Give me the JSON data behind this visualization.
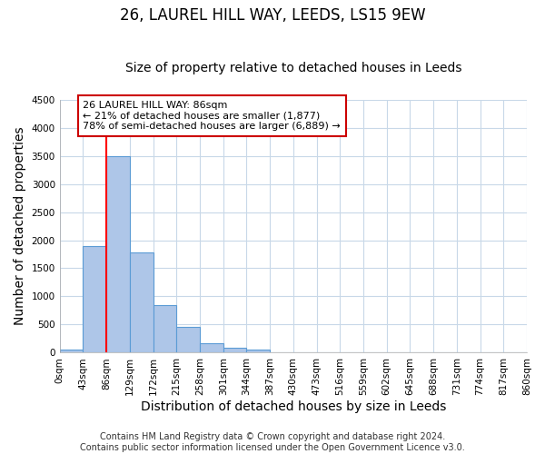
{
  "title": "26, LAUREL HILL WAY, LEEDS, LS15 9EW",
  "subtitle": "Size of property relative to detached houses in Leeds",
  "xlabel": "Distribution of detached houses by size in Leeds",
  "ylabel": "Number of detached properties",
  "bin_edges": [
    0,
    43,
    86,
    129,
    172,
    215,
    258,
    301,
    344,
    387,
    430,
    473,
    516,
    559,
    602,
    645,
    688,
    731,
    774,
    817,
    860
  ],
  "bin_labels": [
    "0sqm",
    "43sqm",
    "86sqm",
    "129sqm",
    "172sqm",
    "215sqm",
    "258sqm",
    "301sqm",
    "344sqm",
    "387sqm",
    "430sqm",
    "473sqm",
    "516sqm",
    "559sqm",
    "602sqm",
    "645sqm",
    "688sqm",
    "731sqm",
    "774sqm",
    "817sqm",
    "860sqm"
  ],
  "bar_heights": [
    50,
    1900,
    3500,
    1775,
    850,
    460,
    175,
    90,
    55,
    0,
    0,
    0,
    0,
    0,
    0,
    0,
    0,
    0,
    0,
    0
  ],
  "bar_color": "#aec6e8",
  "bar_edgecolor": "#5b9bd5",
  "property_line_x": 86,
  "ylim": [
    0,
    4500
  ],
  "yticks": [
    0,
    500,
    1000,
    1500,
    2000,
    2500,
    3000,
    3500,
    4000,
    4500
  ],
  "annotation_title": "26 LAUREL HILL WAY: 86sqm",
  "annotation_line1": "← 21% of detached houses are smaller (1,877)",
  "annotation_line2": "78% of semi-detached houses are larger (6,889) →",
  "annotation_box_color": "#ffffff",
  "annotation_box_edgecolor": "#cc0000",
  "footer_line1": "Contains HM Land Registry data © Crown copyright and database right 2024.",
  "footer_line2": "Contains public sector information licensed under the Open Government Licence v3.0.",
  "background_color": "#ffffff",
  "grid_color": "#c8d8e8",
  "title_fontsize": 12,
  "subtitle_fontsize": 10,
  "axis_label_fontsize": 10,
  "tick_fontsize": 7.5,
  "footer_fontsize": 7
}
